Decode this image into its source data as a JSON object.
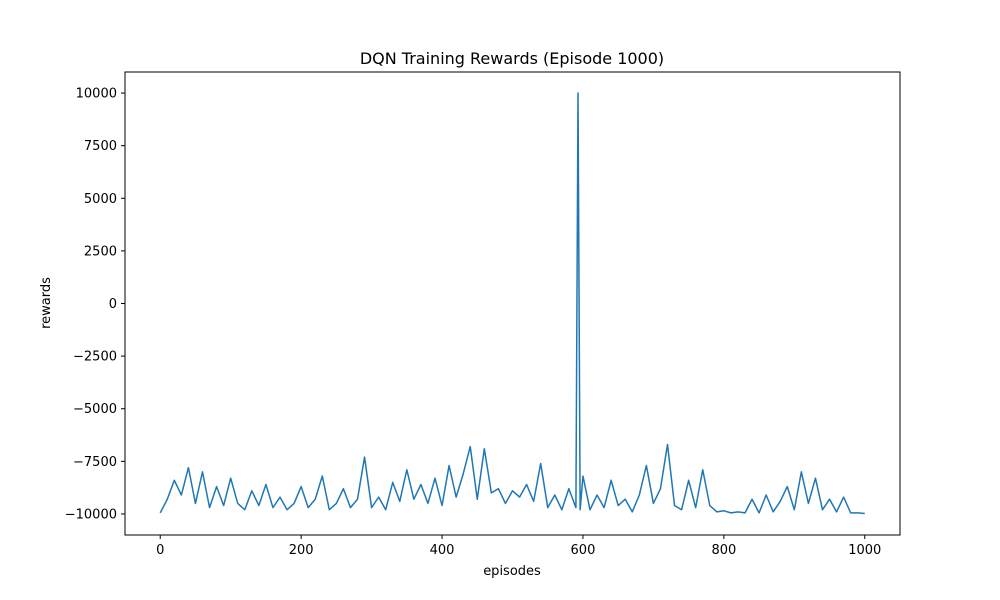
{
  "chart_data": {
    "type": "line",
    "title": "DQN Training Rewards (Episode 1000)",
    "x_label": "episodes",
    "y_label": "rewards",
    "x": [
      0,
      10,
      20,
      30,
      40,
      50,
      60,
      70,
      80,
      90,
      100,
      110,
      120,
      130,
      140,
      150,
      160,
      170,
      180,
      190,
      200,
      210,
      220,
      230,
      240,
      250,
      260,
      270,
      280,
      290,
      300,
      310,
      320,
      330,
      340,
      350,
      360,
      370,
      380,
      390,
      400,
      410,
      420,
      430,
      440,
      450,
      460,
      470,
      480,
      490,
      500,
      510,
      520,
      530,
      540,
      550,
      560,
      570,
      580,
      590,
      593,
      596,
      600,
      610,
      620,
      630,
      640,
      650,
      660,
      670,
      680,
      690,
      700,
      710,
      720,
      730,
      740,
      750,
      760,
      770,
      780,
      790,
      800,
      810,
      820,
      830,
      840,
      850,
      860,
      870,
      880,
      890,
      900,
      910,
      920,
      930,
      940,
      950,
      960,
      970,
      980,
      990,
      1000
    ],
    "series": [
      {
        "color": "#1f77b4",
        "values": [
          -9950,
          -9300,
          -8400,
          -9100,
          -7800,
          -9500,
          -8000,
          -9700,
          -8700,
          -9600,
          -8300,
          -9500,
          -9800,
          -8900,
          -9600,
          -8600,
          -9700,
          -9200,
          -9800,
          -9500,
          -8700,
          -9700,
          -9300,
          -8200,
          -9800,
          -9500,
          -8800,
          -9700,
          -9300,
          -7300,
          -9700,
          -9200,
          -9800,
          -8500,
          -9400,
          -7900,
          -9300,
          -8600,
          -9500,
          -8300,
          -9600,
          -7700,
          -9200,
          -8100,
          -6800,
          -9300,
          -6900,
          -9000,
          -8800,
          -9500,
          -8900,
          -9200,
          -8600,
          -9400,
          -7600,
          -9700,
          -9100,
          -9800,
          -8800,
          -9700,
          10000,
          -9800,
          -8200,
          -9800,
          -9100,
          -9700,
          -8400,
          -9600,
          -9300,
          -9900,
          -9100,
          -7700,
          -9500,
          -8800,
          -6700,
          -9600,
          -9800,
          -8400,
          -9700,
          -7900,
          -9600,
          -9900,
          -9850,
          -9950,
          -9900,
          -9950,
          -9300,
          -9950,
          -9100,
          -9900,
          -9400,
          -8700,
          -9800,
          -8000,
          -9500,
          -8300,
          -9800,
          -9300,
          -9900,
          -9200,
          -9950,
          -9950,
          -9980
        ]
      }
    ],
    "xlim": [
      -50,
      1050
    ],
    "ylim": [
      -11000,
      11000
    ],
    "xticks": [
      0,
      200,
      400,
      600,
      800,
      1000
    ],
    "yticks": [
      {
        "value": -10000,
        "label": "−10000"
      },
      {
        "value": -7500,
        "label": "−7500"
      },
      {
        "value": -5000,
        "label": "−5000"
      },
      {
        "value": -2500,
        "label": "−2500"
      },
      0,
      2500,
      5000,
      7500,
      10000
    ]
  }
}
